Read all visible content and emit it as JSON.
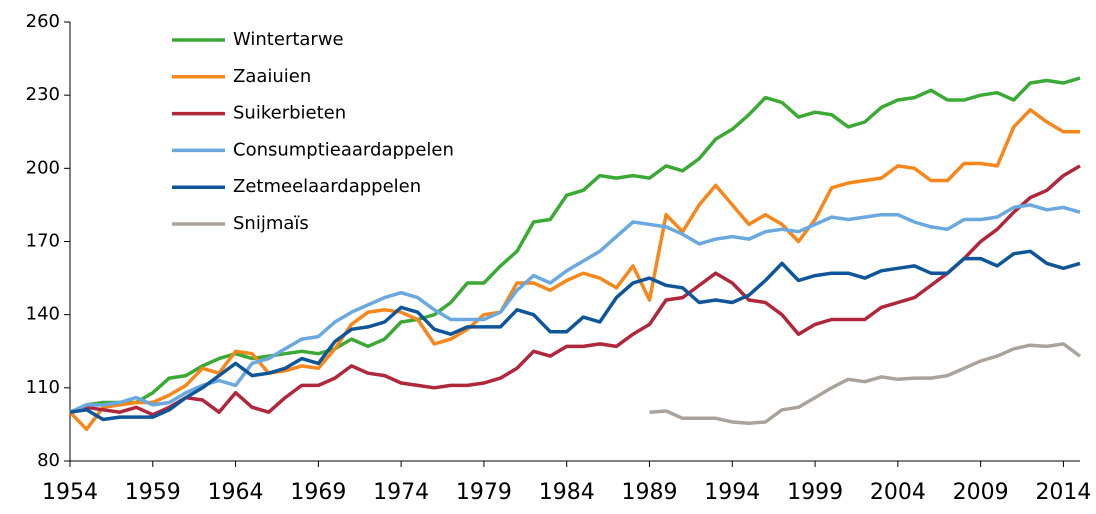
{
  "chart_data": {
    "type": "line",
    "x": [
      1954,
      1955,
      1956,
      1957,
      1958,
      1959,
      1960,
      1961,
      1962,
      1963,
      1964,
      1965,
      1966,
      1967,
      1968,
      1969,
      1970,
      1971,
      1972,
      1973,
      1974,
      1975,
      1976,
      1977,
      1978,
      1979,
      1980,
      1981,
      1982,
      1983,
      1984,
      1985,
      1986,
      1987,
      1988,
      1989,
      1990,
      1991,
      1992,
      1993,
      1994,
      1995,
      1996,
      1997,
      1998,
      1999,
      2000,
      2001,
      2002,
      2003,
      2004,
      2005,
      2006,
      2007,
      2008,
      2009,
      2010,
      2011,
      2012,
      2013,
      2014,
      2015
    ],
    "series": [
      {
        "name": "Wintertarwe",
        "color": "#3aaa35",
        "values": [
          100,
          103,
          104,
          104,
          104,
          108,
          114,
          115,
          119,
          122,
          124,
          122,
          123,
          124,
          125,
          124,
          126,
          130,
          127,
          130,
          137,
          138,
          140,
          145,
          153,
          153,
          160,
          166,
          178,
          179,
          189,
          191,
          197,
          196,
          197,
          196,
          201,
          199,
          204,
          212,
          216,
          222,
          229,
          227,
          221,
          223,
          222,
          217,
          219,
          225,
          228,
          229,
          232,
          228,
          228,
          230,
          231,
          228,
          235,
          236,
          235,
          237
        ]
      },
      {
        "name": "Zaaiuien",
        "color": "#f7861b",
        "values": [
          100,
          93,
          102,
          103,
          104,
          104,
          107,
          111,
          118,
          116,
          125,
          124,
          116,
          117,
          119,
          118,
          126,
          136,
          141,
          142,
          141,
          138,
          128,
          130,
          134,
          140,
          141,
          153,
          153,
          150,
          154,
          157,
          155,
          151,
          160,
          146,
          181,
          174,
          185,
          193,
          185,
          177,
          181,
          177,
          170,
          179,
          192,
          194,
          195,
          196,
          201,
          200,
          195,
          195,
          202,
          202,
          201,
          217,
          224,
          219,
          215,
          215
        ]
      },
      {
        "name": "Suikerbieten",
        "color": "#b0263a",
        "values": [
          100,
          102,
          101,
          100,
          102,
          99,
          102,
          106,
          105,
          100,
          108,
          102,
          100,
          106,
          111,
          111,
          114,
          119,
          116,
          115,
          112,
          111,
          110,
          111,
          111,
          112,
          114,
          118,
          125,
          123,
          127,
          127,
          128,
          127,
          132,
          136,
          146,
          147,
          152,
          157,
          153,
          146,
          145,
          140,
          132,
          136,
          138,
          138,
          138,
          143,
          145,
          147,
          152,
          157,
          163,
          170,
          175,
          182,
          188,
          191,
          197,
          201
        ]
      },
      {
        "name": "Consumptieaardappelen",
        "color": "#6aa8e0",
        "values": [
          100,
          103,
          103,
          104,
          106,
          103,
          104,
          108,
          111,
          113,
          111,
          120,
          122,
          126,
          130,
          131,
          137,
          141,
          144,
          147,
          149,
          147,
          142,
          138,
          138,
          138,
          141,
          150,
          156,
          153,
          158,
          162,
          166,
          172,
          178,
          177,
          176,
          173,
          169,
          171,
          172,
          171,
          174,
          175,
          174,
          177,
          180,
          179,
          180,
          181,
          181,
          178,
          176,
          175,
          179,
          179,
          180,
          184,
          185,
          183,
          184,
          182
        ]
      },
      {
        "name": "Zetmeelaardappelen",
        "color": "#0e5599",
        "values": [
          100,
          101,
          97,
          98,
          98,
          98,
          101,
          106,
          110,
          115,
          120,
          115,
          116,
          118,
          122,
          120,
          129,
          134,
          135,
          137,
          143,
          141,
          134,
          132,
          135,
          135,
          135,
          142,
          140,
          133,
          133,
          139,
          137,
          147,
          153,
          155,
          152,
          151,
          145,
          146,
          145,
          148,
          154,
          161,
          154,
          156,
          157,
          157,
          155,
          158,
          159,
          160,
          157,
          157,
          163,
          163,
          160,
          165,
          166,
          161,
          159,
          161
        ]
      },
      {
        "name": "Snijmaïs",
        "color": "#aaa39b",
        "values": [
          null,
          null,
          null,
          null,
          null,
          null,
          null,
          null,
          null,
          null,
          null,
          null,
          null,
          null,
          null,
          null,
          null,
          null,
          null,
          null,
          null,
          null,
          null,
          null,
          null,
          null,
          null,
          null,
          null,
          null,
          null,
          null,
          null,
          null,
          null,
          100,
          100.5,
          97.5,
          97.5,
          97.5,
          96,
          95.5,
          96,
          101,
          102,
          106,
          110,
          113.5,
          112.5,
          114.5,
          113.5,
          114,
          114,
          115,
          118,
          121,
          123,
          126,
          127.5,
          127,
          128,
          123
        ]
      }
    ],
    "xlim": [
      1954,
      2015
    ],
    "xticks": [
      1954,
      1959,
      1964,
      1969,
      1974,
      1979,
      1984,
      1989,
      1994,
      1999,
      2004,
      2009,
      2014
    ],
    "ylim": [
      80,
      260
    ],
    "yticks": [
      80,
      110,
      140,
      170,
      200,
      230,
      260
    ],
    "legend": "top-left"
  }
}
